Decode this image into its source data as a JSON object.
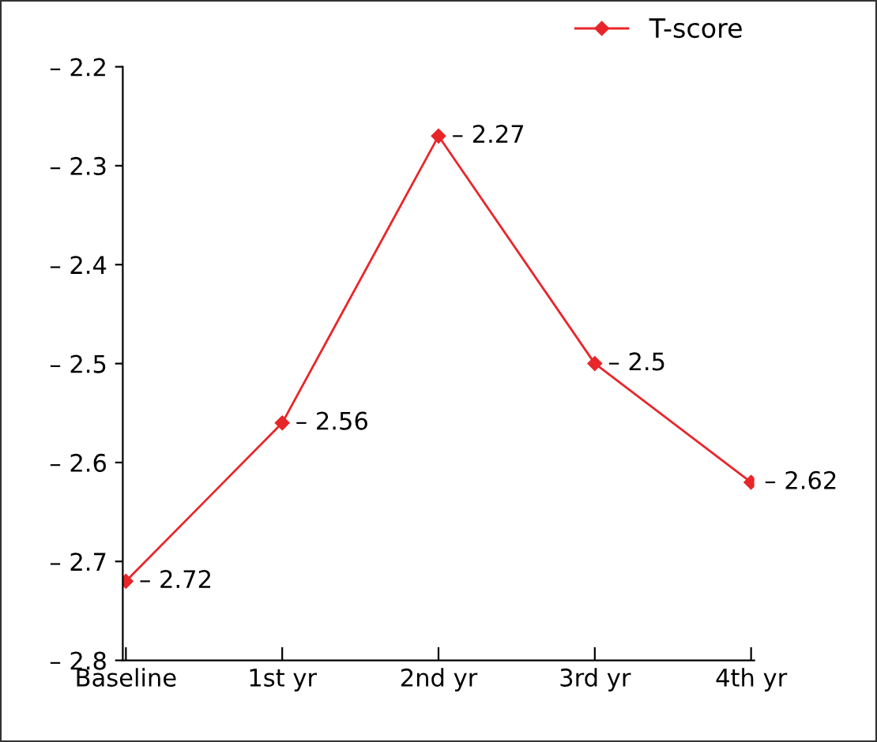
{
  "chart_data": {
    "type": "line",
    "categories": [
      "Baseline",
      "1st yr",
      "2nd yr",
      "3rd yr",
      "4th yr"
    ],
    "series": [
      {
        "name": "T-score",
        "color": "#e8262a",
        "values": [
          -2.72,
          -2.56,
          -2.27,
          -2.5,
          -2.62
        ],
        "value_labels": [
          "– 2.72",
          "– 2.56",
          "– 2.27",
          "– 2.5",
          "– 2.62"
        ]
      }
    ],
    "ylim": [
      -2.8,
      -2.2
    ],
    "yticks": [
      {
        "value": -2.8,
        "label": "– 2.8"
      },
      {
        "value": -2.7,
        "label": "– 2.7"
      },
      {
        "value": -2.6,
        "label": "– 2.6"
      },
      {
        "value": -2.5,
        "label": "– 2.5"
      },
      {
        "value": -2.4,
        "label": "– 2.4"
      },
      {
        "value": -2.3,
        "label": "– 2.3"
      },
      {
        "value": -2.2,
        "label": "– 2.2"
      }
    ],
    "grid": false,
    "legend": "top right",
    "marker": "diamond",
    "line_style": "solid"
  }
}
